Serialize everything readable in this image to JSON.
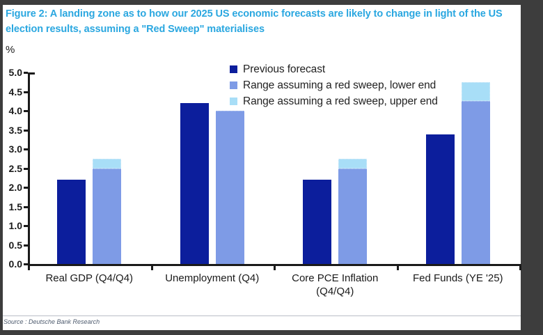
{
  "figure": {
    "title": "Figure 2: A landing zone as to how our 2025 US economic forecasts are likely to change in light of the US election results, assuming a \"Red Sweep\" materialises",
    "title_color": "#2aa7e0",
    "source": "Source : Deutsche Bank Research"
  },
  "chart_data": {
    "type": "bar",
    "unit_label": "%",
    "categories": [
      "Real GDP (Q4/Q4)",
      "Unemployment (Q4)",
      "Core PCE Inflation (Q4/Q4)",
      "Fed Funds (YE '25)"
    ],
    "series": [
      {
        "name": "Previous forecast",
        "role": "previous",
        "values": [
          2.2,
          4.2,
          2.2,
          3.375
        ]
      },
      {
        "name": "Range assuming a red sweep, lower end",
        "role": "lower",
        "values": [
          2.5,
          4.0,
          2.5,
          4.25
        ]
      },
      {
        "name": "Range assuming a red sweep, upper end",
        "role": "upper",
        "values": [
          2.75,
          null,
          2.75,
          4.75
        ]
      }
    ],
    "ylim": [
      0,
      5.0
    ],
    "ytick_step": 0.5,
    "grid": false,
    "legend_position": "top-center",
    "colors": {
      "previous": "#0c1e9c",
      "lower": "#7e9be6",
      "upper": "#a8def7"
    }
  }
}
